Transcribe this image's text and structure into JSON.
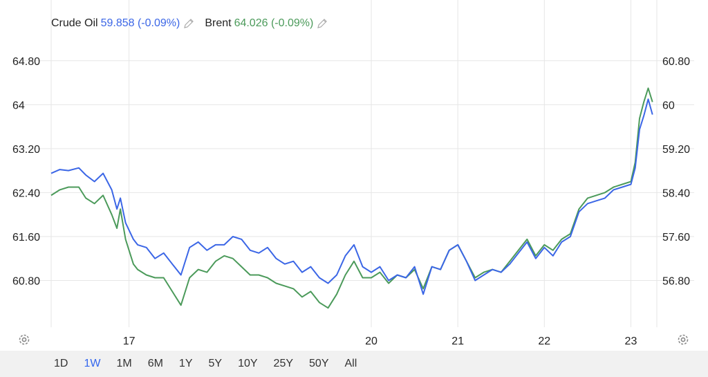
{
  "legend": {
    "series1_name": "Crude Oil",
    "series1_value": "59.858 (-0.09%)",
    "series2_name": "Brent",
    "series2_value": "64.026 (-0.09%)"
  },
  "range_buttons": [
    "1D",
    "1W",
    "1M",
    "6M",
    "1Y",
    "5Y",
    "10Y",
    "25Y",
    "50Y",
    "All"
  ],
  "active_range": "1W",
  "colors": {
    "crude": "#3b66e6",
    "brent": "#4b9a5a",
    "grid": "#e6e6e6",
    "bar_bg": "#f1f1f1",
    "active": "#3366ee"
  },
  "icons": {
    "edit": "pencil-icon",
    "settings": "gear-icon"
  },
  "chart_data": {
    "type": "line",
    "x_tick_labels": [
      "17",
      "20",
      "21",
      "22",
      "23"
    ],
    "x_ticks": [
      1.2,
      4,
      5,
      6,
      7
    ],
    "xlim": [
      0.3,
      7.3
    ],
    "y_left": {
      "ticks": [
        "60.80",
        "61.60",
        "62.40",
        "63.20",
        "64",
        "64.80"
      ],
      "ylim": [
        59.95,
        65.15
      ]
    },
    "y_right": {
      "ticks": [
        "56.80",
        "57.60",
        "58.40",
        "59.20",
        "60",
        "60.80"
      ],
      "ylim": [
        55.95,
        61.15
      ]
    },
    "series": [
      {
        "name": "Crude Oil",
        "axis": "right",
        "x": [
          0.3,
          0.4,
          0.5,
          0.62,
          0.7,
          0.8,
          0.9,
          1.0,
          1.06,
          1.1,
          1.16,
          1.25,
          1.3,
          1.4,
          1.5,
          1.6,
          1.7,
          1.8,
          1.9,
          2.0,
          2.1,
          2.2,
          2.3,
          2.4,
          2.5,
          2.6,
          2.7,
          2.8,
          2.9,
          3.0,
          3.1,
          3.2,
          3.3,
          3.4,
          3.5,
          3.6,
          3.7,
          3.8,
          3.9,
          4.0,
          4.1,
          4.2,
          4.3,
          4.4,
          4.5,
          4.6,
          4.7,
          4.8,
          4.9,
          5.0,
          5.1,
          5.2,
          5.3,
          5.4,
          5.5,
          5.6,
          5.7,
          5.8,
          5.9,
          6.0,
          6.1,
          6.2,
          6.3,
          6.4,
          6.5,
          6.6,
          6.7,
          6.8,
          6.9,
          7.0,
          7.05,
          7.1,
          7.15,
          7.2,
          7.25
        ],
        "y": [
          58.75,
          58.82,
          58.8,
          58.85,
          58.72,
          58.6,
          58.75,
          58.45,
          58.1,
          58.3,
          57.85,
          57.55,
          57.45,
          57.4,
          57.2,
          57.3,
          57.1,
          56.9,
          57.4,
          57.5,
          57.35,
          57.45,
          57.45,
          57.6,
          57.55,
          57.35,
          57.3,
          57.4,
          57.2,
          57.1,
          57.15,
          56.95,
          57.05,
          56.85,
          56.75,
          56.9,
          57.25,
          57.45,
          57.05,
          56.95,
          57.05,
          56.8,
          56.9,
          56.85,
          57.05,
          56.55,
          57.05,
          57.0,
          57.35,
          57.45,
          57.15,
          56.8,
          56.9,
          57.0,
          56.95,
          57.1,
          57.3,
          57.5,
          57.2,
          57.4,
          57.25,
          57.5,
          57.6,
          58.05,
          58.2,
          58.25,
          58.3,
          58.45,
          58.5,
          58.55,
          58.85,
          59.55,
          59.8,
          60.1,
          59.82
        ],
        "values": [
          58.75,
          58.82,
          58.8,
          58.85,
          58.72,
          58.6,
          58.75,
          58.45,
          58.1,
          58.3,
          57.85,
          57.55,
          57.45,
          57.4,
          57.2,
          57.3,
          57.1,
          56.9,
          57.4,
          57.5,
          57.35,
          57.45,
          57.45,
          57.6,
          57.55,
          57.35,
          57.3,
          57.4,
          57.2,
          57.1,
          57.15,
          56.95,
          57.05,
          56.85,
          56.75,
          56.9,
          57.25,
          57.45,
          57.05,
          56.95,
          57.05,
          56.8,
          56.9,
          56.85,
          57.05,
          56.55,
          57.05,
          57.0,
          57.35,
          57.45,
          57.15,
          56.8,
          56.9,
          57.0,
          56.95,
          57.1,
          57.3,
          57.5,
          57.2,
          57.4,
          57.25,
          57.5,
          57.6,
          58.05,
          58.2,
          58.25,
          58.3,
          58.45,
          58.5,
          58.55,
          58.85,
          59.55,
          59.8,
          60.1,
          59.82
        ]
      },
      {
        "name": "Brent",
        "axis": "left",
        "x": [
          0.3,
          0.4,
          0.5,
          0.62,
          0.7,
          0.8,
          0.9,
          1.0,
          1.06,
          1.1,
          1.16,
          1.25,
          1.3,
          1.4,
          1.5,
          1.6,
          1.7,
          1.8,
          1.9,
          2.0,
          2.1,
          2.2,
          2.3,
          2.4,
          2.5,
          2.6,
          2.7,
          2.8,
          2.9,
          3.0,
          3.1,
          3.2,
          3.3,
          3.4,
          3.5,
          3.6,
          3.7,
          3.8,
          3.9,
          4.0,
          4.1,
          4.2,
          4.3,
          4.4,
          4.5,
          4.6,
          4.7,
          4.8,
          4.9,
          5.0,
          5.1,
          5.2,
          5.3,
          5.4,
          5.5,
          5.6,
          5.7,
          5.8,
          5.9,
          6.0,
          6.1,
          6.2,
          6.3,
          6.4,
          6.5,
          6.6,
          6.7,
          6.8,
          6.9,
          7.0,
          7.05,
          7.1,
          7.15,
          7.2,
          7.25
        ],
        "y": [
          62.35,
          62.45,
          62.5,
          62.5,
          62.3,
          62.2,
          62.35,
          62.0,
          61.75,
          62.1,
          61.55,
          61.1,
          61.0,
          60.9,
          60.85,
          60.85,
          60.6,
          60.35,
          60.85,
          61.0,
          60.95,
          61.15,
          61.25,
          61.2,
          61.05,
          60.9,
          60.9,
          60.85,
          60.75,
          60.7,
          60.65,
          60.5,
          60.6,
          60.4,
          60.3,
          60.55,
          60.9,
          61.15,
          60.85,
          60.85,
          60.95,
          60.75,
          60.9,
          60.85,
          61.0,
          60.65,
          61.05,
          61.0,
          61.35,
          61.45,
          61.15,
          60.85,
          60.95,
          61.0,
          60.95,
          61.15,
          61.35,
          61.55,
          61.25,
          61.45,
          61.35,
          61.55,
          61.65,
          62.1,
          62.3,
          62.35,
          62.4,
          62.5,
          62.55,
          62.6,
          62.95,
          63.75,
          64.05,
          64.3,
          64.05
        ],
        "values": [
          62.35,
          62.45,
          62.5,
          62.5,
          62.3,
          62.2,
          62.35,
          62.0,
          61.75,
          62.1,
          61.55,
          61.1,
          61.0,
          60.9,
          60.85,
          60.85,
          60.6,
          60.35,
          60.85,
          61.0,
          60.95,
          61.15,
          61.25,
          61.2,
          61.05,
          60.9,
          60.9,
          60.85,
          60.75,
          60.7,
          60.65,
          60.5,
          60.6,
          60.4,
          60.3,
          60.55,
          60.9,
          61.15,
          60.85,
          60.85,
          60.95,
          60.75,
          60.9,
          60.85,
          61.0,
          60.65,
          61.05,
          61.0,
          61.35,
          61.45,
          61.15,
          60.85,
          60.95,
          61.0,
          60.95,
          61.15,
          61.35,
          61.55,
          61.25,
          61.45,
          61.35,
          61.55,
          61.65,
          62.1,
          62.3,
          62.35,
          62.4,
          62.5,
          62.55,
          62.6,
          62.95,
          63.75,
          64.05,
          64.3,
          64.05
        ]
      }
    ],
    "grid": true,
    "legend_position": "top-left"
  }
}
